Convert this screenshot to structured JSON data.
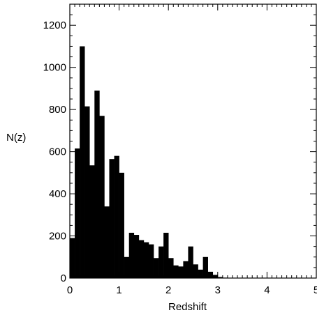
{
  "chart_data": {
    "type": "bar",
    "xlabel": "Redshift",
    "ylabel": "N(z)",
    "xlim": [
      0,
      5
    ],
    "ylim": [
      0,
      1300
    ],
    "bin_width": 0.1,
    "x_ticks": [
      0,
      1,
      2,
      3,
      4,
      5
    ],
    "y_ticks": [
      0,
      200,
      400,
      600,
      800,
      1000,
      1200
    ],
    "grid": false,
    "legend": "none",
    "bar_color": "#000000",
    "bins": [
      {
        "x": 0.0,
        "value": 190
      },
      {
        "x": 0.1,
        "value": 615
      },
      {
        "x": 0.2,
        "value": 1100
      },
      {
        "x": 0.3,
        "value": 815
      },
      {
        "x": 0.4,
        "value": 535
      },
      {
        "x": 0.5,
        "value": 890
      },
      {
        "x": 0.6,
        "value": 770
      },
      {
        "x": 0.7,
        "value": 340
      },
      {
        "x": 0.8,
        "value": 565
      },
      {
        "x": 0.9,
        "value": 580
      },
      {
        "x": 1.0,
        "value": 500
      },
      {
        "x": 1.1,
        "value": 100
      },
      {
        "x": 1.2,
        "value": 215
      },
      {
        "x": 1.3,
        "value": 205
      },
      {
        "x": 1.4,
        "value": 180
      },
      {
        "x": 1.5,
        "value": 170
      },
      {
        "x": 1.6,
        "value": 160
      },
      {
        "x": 1.7,
        "value": 95
      },
      {
        "x": 1.8,
        "value": 150
      },
      {
        "x": 1.9,
        "value": 215
      },
      {
        "x": 2.0,
        "value": 95
      },
      {
        "x": 2.1,
        "value": 60
      },
      {
        "x": 2.2,
        "value": 55
      },
      {
        "x": 2.3,
        "value": 80
      },
      {
        "x": 2.4,
        "value": 150
      },
      {
        "x": 2.5,
        "value": 65
      },
      {
        "x": 2.6,
        "value": 40
      },
      {
        "x": 2.7,
        "value": 100
      },
      {
        "x": 2.8,
        "value": 30
      },
      {
        "x": 2.9,
        "value": 15
      },
      {
        "x": 3.0,
        "value": 5
      },
      {
        "x": 3.1,
        "value": 2
      },
      {
        "x": 3.2,
        "value": 1
      }
    ]
  }
}
